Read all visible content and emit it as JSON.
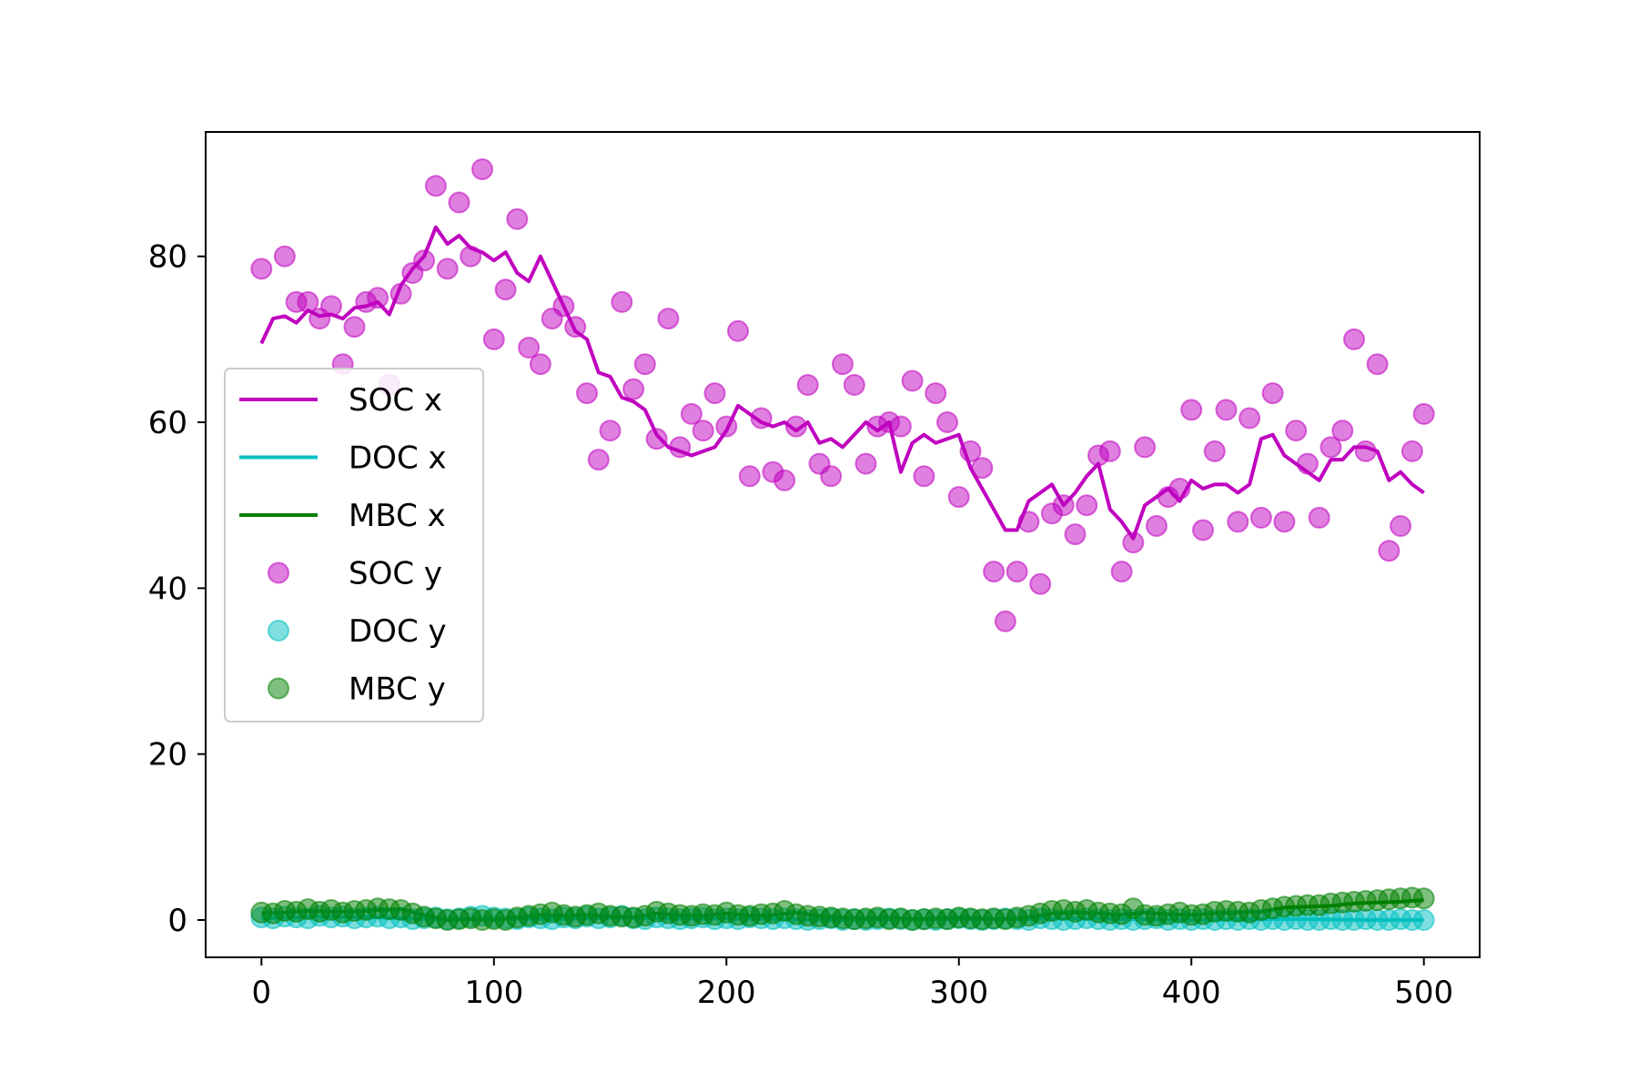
{
  "chart_data": {
    "type": "line",
    "title": "",
    "xlabel": "",
    "ylabel": "",
    "xlim": [
      -24,
      524
    ],
    "ylim": [
      -4.5,
      95
    ],
    "xticks": [
      0,
      100,
      200,
      300,
      400,
      500
    ],
    "yticks": [
      0,
      20,
      40,
      60,
      80
    ],
    "grid": false,
    "legend_position": "center-left",
    "colors": {
      "SOC": "#bf00bf",
      "DOC": "#00bfbf",
      "MBC": "#008000"
    },
    "line_series": [
      {
        "name": "SOC x",
        "color": "#bf00bf",
        "x": [
          0,
          5,
          10,
          15,
          20,
          25,
          30,
          35,
          40,
          45,
          50,
          55,
          60,
          65,
          70,
          75,
          80,
          85,
          90,
          95,
          100,
          105,
          110,
          115,
          120,
          125,
          130,
          135,
          140,
          145,
          150,
          155,
          160,
          165,
          170,
          175,
          180,
          185,
          190,
          195,
          200,
          205,
          210,
          215,
          220,
          225,
          230,
          235,
          240,
          245,
          250,
          255,
          260,
          265,
          270,
          275,
          280,
          285,
          290,
          295,
          300,
          305,
          310,
          315,
          320,
          325,
          330,
          335,
          340,
          345,
          350,
          355,
          360,
          365,
          370,
          375,
          380,
          385,
          390,
          395,
          400,
          405,
          410,
          415,
          420,
          425,
          430,
          435,
          440,
          445,
          450,
          455,
          460,
          465,
          470,
          475,
          480,
          485,
          490,
          495,
          500
        ],
        "y": [
          69.5,
          72.5,
          72.8,
          72.0,
          73.5,
          72.8,
          73.0,
          72.5,
          73.8,
          74.0,
          74.5,
          73.0,
          76.5,
          78.5,
          80.0,
          83.5,
          81.5,
          82.5,
          81.0,
          80.5,
          79.5,
          80.5,
          78.0,
          77.0,
          80.0,
          77.0,
          74.0,
          71.0,
          70.0,
          66.0,
          65.5,
          63.0,
          62.5,
          61.5,
          58.5,
          57.0,
          56.5,
          56.0,
          56.5,
          57.0,
          59.0,
          62.0,
          61.0,
          60.0,
          59.5,
          60.0,
          59.0,
          60.0,
          57.5,
          58.0,
          57.0,
          58.5,
          60.0,
          59.0,
          60.0,
          54.0,
          57.5,
          58.5,
          57.5,
          58.0,
          58.5,
          54.5,
          52.0,
          49.5,
          47.0,
          47.0,
          50.5,
          51.5,
          52.5,
          50.0,
          51.5,
          53.5,
          55.0,
          49.5,
          48.0,
          46.0,
          50.0,
          51.0,
          52.0,
          50.5,
          53.0,
          52.0,
          52.5,
          52.5,
          51.5,
          52.5,
          58.0,
          58.5,
          56.0,
          55.0,
          54.0,
          53.0,
          55.5,
          55.5,
          57.0,
          57.0,
          56.5,
          53.0,
          54.0,
          52.5,
          51.5
        ]
      },
      {
        "name": "DOC x",
        "color": "#00bfbf",
        "x": [
          0,
          25,
          50,
          75,
          100,
          125,
          150,
          175,
          200,
          225,
          250,
          275,
          300,
          325,
          350,
          375,
          400,
          425,
          450,
          475,
          500
        ],
        "y": [
          0.2,
          0.4,
          0.3,
          0.1,
          0.2,
          0.1,
          0.3,
          0.2,
          0.2,
          0.1,
          0.0,
          0.1,
          0.1,
          0.1,
          0.2,
          0.1,
          0.0,
          0.1,
          0.1,
          0.0,
          0.0
        ]
      },
      {
        "name": "MBC x",
        "color": "#008000",
        "x": [
          0,
          10,
          20,
          30,
          40,
          50,
          60,
          70,
          80,
          90,
          100,
          110,
          120,
          130,
          140,
          150,
          160,
          170,
          180,
          190,
          200,
          210,
          220,
          230,
          240,
          250,
          260,
          270,
          280,
          290,
          300,
          310,
          320,
          330,
          340,
          350,
          360,
          370,
          380,
          390,
          400,
          410,
          420,
          430,
          440,
          450,
          460,
          470,
          480,
          490,
          500
        ],
        "y": [
          0.8,
          0.9,
          1.1,
          1.0,
          1.0,
          1.2,
          1.3,
          0.6,
          0.0,
          0.1,
          0.0,
          0.3,
          0.6,
          0.5,
          0.6,
          0.4,
          0.3,
          0.8,
          0.6,
          0.5,
          0.8,
          0.5,
          0.6,
          0.9,
          0.5,
          0.3,
          0.2,
          0.3,
          0.1,
          0.2,
          0.3,
          0.2,
          0.1,
          0.3,
          0.8,
          0.9,
          0.8,
          0.6,
          0.9,
          0.7,
          0.6,
          0.8,
          0.9,
          1.0,
          1.5,
          1.6,
          1.7,
          2.0,
          2.1,
          2.2,
          2.4
        ]
      }
    ],
    "scatter_series": [
      {
        "name": "SOC y",
        "color": "#bf00bf",
        "x": [
          0,
          10,
          15,
          20,
          25,
          30,
          35,
          40,
          45,
          50,
          55,
          60,
          65,
          70,
          75,
          80,
          85,
          90,
          95,
          100,
          105,
          110,
          115,
          120,
          125,
          130,
          135,
          140,
          145,
          150,
          155,
          160,
          165,
          170,
          175,
          180,
          185,
          190,
          195,
          200,
          205,
          210,
          215,
          220,
          225,
          230,
          235,
          240,
          245,
          250,
          255,
          260,
          265,
          270,
          275,
          280,
          285,
          290,
          295,
          300,
          305,
          310,
          315,
          320,
          325,
          330,
          335,
          340,
          345,
          350,
          355,
          360,
          365,
          370,
          375,
          380,
          385,
          390,
          395,
          400,
          405,
          410,
          415,
          420,
          425,
          430,
          435,
          440,
          445,
          450,
          455,
          460,
          465,
          470,
          475,
          480,
          485,
          490,
          495,
          500
        ],
        "y": [
          78.5,
          80.0,
          74.5,
          74.5,
          72.5,
          74.0,
          67.0,
          71.5,
          74.5,
          75.0,
          64.5,
          75.5,
          78.0,
          79.5,
          88.5,
          78.5,
          86.5,
          80.0,
          90.5,
          70.0,
          76.0,
          84.5,
          69.0,
          67.0,
          72.5,
          74.0,
          71.5,
          63.5,
          55.5,
          59.0,
          74.5,
          64.0,
          67.0,
          58.0,
          72.5,
          57.0,
          61.0,
          59.0,
          63.5,
          59.5,
          71.0,
          53.5,
          60.5,
          54.0,
          53.0,
          59.5,
          64.5,
          55.0,
          53.5,
          67.0,
          64.5,
          55.0,
          59.5,
          60.0,
          59.5,
          65.0,
          53.5,
          63.5,
          60.0,
          51.0,
          56.5,
          54.5,
          42.0,
          36.0,
          42.0,
          48.0,
          40.5,
          49.0,
          50.0,
          46.5,
          50.0,
          56.0,
          56.5,
          42.0,
          45.5,
          57.0,
          47.5,
          51.0,
          52.0,
          61.5,
          47.0,
          56.5,
          61.5,
          48.0,
          60.5,
          48.5,
          63.5,
          48.0,
          59.0,
          55.0,
          48.5,
          57.0,
          59.0,
          70.0,
          56.5,
          67.0,
          44.5,
          47.5,
          56.5,
          61.0
        ]
      },
      {
        "name": "DOC y",
        "color": "#00bfbf",
        "x": [
          0,
          5,
          10,
          15,
          20,
          25,
          30,
          35,
          40,
          45,
          50,
          55,
          60,
          65,
          70,
          75,
          80,
          85,
          90,
          95,
          100,
          105,
          110,
          115,
          120,
          125,
          130,
          135,
          140,
          145,
          150,
          155,
          160,
          165,
          170,
          175,
          180,
          185,
          190,
          195,
          200,
          205,
          210,
          215,
          220,
          225,
          230,
          235,
          240,
          245,
          250,
          255,
          260,
          265,
          270,
          275,
          280,
          285,
          290,
          295,
          300,
          305,
          310,
          315,
          320,
          325,
          330,
          335,
          340,
          345,
          350,
          355,
          360,
          365,
          370,
          375,
          380,
          385,
          390,
          395,
          400,
          405,
          410,
          415,
          420,
          425,
          430,
          435,
          440,
          445,
          450,
          455,
          460,
          465,
          470,
          475,
          480,
          485,
          490,
          495,
          500
        ],
        "y": [
          0.3,
          0.2,
          0.4,
          0.3,
          0.2,
          0.5,
          0.3,
          0.4,
          0.2,
          0.3,
          0.4,
          0.2,
          0.3,
          0.1,
          0.2,
          0.3,
          0.1,
          0.2,
          0.4,
          0.5,
          0.3,
          0.2,
          0.1,
          0.3,
          0.2,
          0.1,
          0.3,
          0.2,
          0.4,
          0.2,
          0.3,
          0.5,
          0.2,
          0.1,
          0.3,
          0.2,
          0.1,
          0.2,
          0.3,
          0.1,
          0.2,
          0.1,
          0.3,
          0.2,
          0.1,
          0.2,
          0.1,
          0.0,
          0.1,
          0.2,
          0.0,
          0.1,
          0.0,
          0.1,
          0.2,
          0.1,
          0.0,
          0.1,
          0.0,
          0.1,
          0.2,
          0.1,
          0.0,
          0.1,
          0.2,
          0.1,
          0.0,
          0.2,
          0.1,
          0.0,
          0.1,
          0.2,
          0.1,
          0.0,
          0.1,
          0.0,
          0.1,
          0.2,
          0.0,
          0.1,
          0.0,
          0.1,
          0.0,
          0.1,
          0.0,
          0.1,
          0.0,
          0.1,
          0.0,
          0.1,
          0.0,
          0.0,
          0.1,
          0.0,
          0.0,
          0.1,
          0.0,
          0.0,
          0.1,
          0.0,
          0.0
        ]
      },
      {
        "name": "MBC y",
        "color": "#008000",
        "x": [
          0,
          5,
          10,
          15,
          20,
          25,
          30,
          35,
          40,
          45,
          50,
          55,
          60,
          65,
          70,
          75,
          80,
          85,
          90,
          95,
          100,
          105,
          110,
          115,
          120,
          125,
          130,
          135,
          140,
          145,
          150,
          155,
          160,
          165,
          170,
          175,
          180,
          185,
          190,
          195,
          200,
          205,
          210,
          215,
          220,
          225,
          230,
          235,
          240,
          245,
          250,
          255,
          260,
          265,
          270,
          275,
          280,
          285,
          290,
          295,
          300,
          305,
          310,
          315,
          320,
          325,
          330,
          335,
          340,
          345,
          350,
          355,
          360,
          365,
          370,
          375,
          380,
          385,
          390,
          395,
          400,
          405,
          410,
          415,
          420,
          425,
          430,
          435,
          440,
          445,
          450,
          455,
          460,
          465,
          470,
          475,
          480,
          485,
          490,
          495,
          500
        ],
        "y": [
          0.9,
          0.8,
          1.1,
          1.0,
          1.3,
          1.0,
          1.2,
          0.9,
          1.1,
          1.2,
          1.4,
          1.3,
          1.2,
          0.8,
          0.4,
          0.2,
          0.0,
          0.1,
          0.2,
          0.0,
          0.1,
          0.0,
          0.3,
          0.5,
          0.7,
          0.9,
          0.6,
          0.4,
          0.6,
          0.8,
          0.5,
          0.4,
          0.3,
          0.5,
          1.0,
          0.8,
          0.6,
          0.5,
          0.7,
          0.6,
          0.9,
          0.6,
          0.5,
          0.7,
          0.8,
          1.1,
          0.7,
          0.5,
          0.4,
          0.3,
          0.2,
          0.1,
          0.2,
          0.3,
          0.1,
          0.2,
          0.0,
          0.1,
          0.2,
          0.1,
          0.3,
          0.2,
          0.1,
          0.2,
          0.1,
          0.3,
          0.5,
          0.8,
          1.1,
          1.2,
          1.0,
          1.2,
          0.9,
          0.8,
          0.7,
          1.4,
          0.6,
          0.5,
          0.7,
          0.9,
          0.6,
          0.7,
          1.0,
          1.1,
          1.0,
          0.9,
          1.2,
          1.4,
          1.6,
          1.7,
          1.8,
          1.8,
          2.0,
          2.1,
          2.2,
          2.3,
          2.4,
          2.5,
          2.6,
          2.7,
          2.6
        ]
      }
    ],
    "legend": [
      {
        "label": "SOC x",
        "kind": "line",
        "color": "#bf00bf"
      },
      {
        "label": "DOC x",
        "kind": "line",
        "color": "#00bfbf"
      },
      {
        "label": "MBC x",
        "kind": "line",
        "color": "#008000"
      },
      {
        "label": "SOC y",
        "kind": "marker",
        "color": "#bf00bf"
      },
      {
        "label": "DOC y",
        "kind": "marker",
        "color": "#00bfbf"
      },
      {
        "label": "MBC y",
        "kind": "marker",
        "color": "#008000"
      }
    ]
  }
}
